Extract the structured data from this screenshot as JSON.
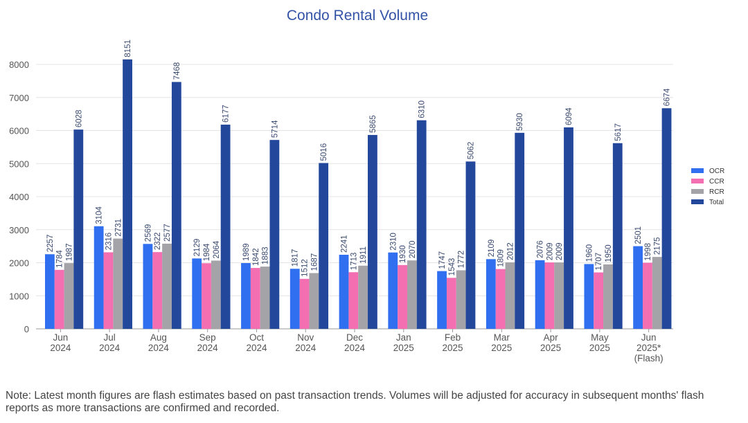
{
  "chart_data": {
    "type": "bar",
    "title": "Condo Rental Volume",
    "categories": [
      [
        "Jun",
        "2024"
      ],
      [
        "Jul",
        "2024"
      ],
      [
        "Aug",
        "2024"
      ],
      [
        "Sep",
        "2024"
      ],
      [
        "Oct",
        "2024"
      ],
      [
        "Nov",
        "2024"
      ],
      [
        "Dec",
        "2024"
      ],
      [
        "Jan",
        "2025"
      ],
      [
        "Feb",
        "2025"
      ],
      [
        "Mar",
        "2025"
      ],
      [
        "Apr",
        "2025"
      ],
      [
        "May",
        "2025"
      ],
      [
        "Jun",
        "2025*",
        "(Flash)"
      ]
    ],
    "series": [
      {
        "name": "OCR",
        "color": "#2f6ff0",
        "values": [
          2257,
          3104,
          2569,
          2129,
          1989,
          1817,
          2241,
          2310,
          1747,
          2109,
          2076,
          1960,
          2501
        ]
      },
      {
        "name": "CCR",
        "color": "#f46fb2",
        "values": [
          1784,
          2316,
          2322,
          1984,
          1842,
          1512,
          1713,
          1930,
          1543,
          1809,
          2009,
          1707,
          1998
        ]
      },
      {
        "name": "RCR",
        "color": "#a3a3a8",
        "values": [
          1987,
          2731,
          2577,
          2064,
          1883,
          1687,
          1911,
          2070,
          1772,
          2012,
          2009,
          1950,
          2175
        ]
      },
      {
        "name": "Total",
        "color": "#23479b",
        "values": [
          6028,
          8151,
          7468,
          6177,
          5714,
          5016,
          5865,
          6310,
          5062,
          5930,
          6094,
          5617,
          6674
        ]
      }
    ],
    "ylim": [
      0,
      8000
    ],
    "yticks": [
      0,
      1000,
      2000,
      3000,
      4000,
      5000,
      6000,
      7000,
      8000
    ],
    "grid": true,
    "legend_position": "right",
    "xlabel": "",
    "ylabel": ""
  },
  "note": "Note: Latest month figures are flash estimates based on past transaction trends. Volumes will be adjusted for accuracy in subsequent months' flash reports as more transactions are confirmed and recorded."
}
